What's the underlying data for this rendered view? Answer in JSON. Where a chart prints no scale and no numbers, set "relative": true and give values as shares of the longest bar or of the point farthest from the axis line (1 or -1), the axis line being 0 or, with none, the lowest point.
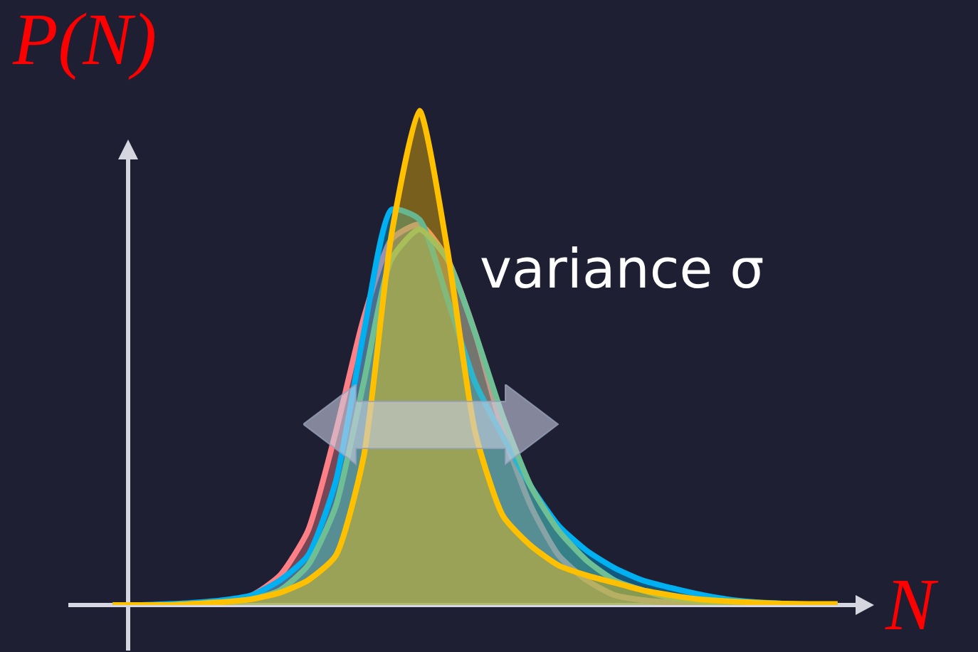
{
  "chart_data": {
    "type": "area",
    "relative": true,
    "ylabel": "P(N)",
    "xlabel": "N",
    "annotations": [
      "variance σ"
    ],
    "legend": false,
    "grid": false,
    "marker": "none",
    "categories": [
      null,
      null,
      null,
      null,
      null,
      null,
      null,
      null,
      null,
      null,
      null,
      null,
      null,
      null,
      null,
      null,
      null,
      null,
      null,
      null,
      null,
      null,
      null,
      null,
      null,
      null,
      null
    ],
    "series": [
      {
        "color": "#ff7f86",
        "values": [
          0,
          0,
          0,
          0.003,
          0.008,
          0.02,
          0.06,
          0.15,
          0.35,
          0.58,
          0.74,
          0.77,
          0.7,
          0.55,
          0.35,
          0.2,
          0.1,
          0.05,
          0.02,
          0.01,
          0.005,
          0.002,
          0,
          0,
          0,
          0,
          0
        ]
      },
      {
        "color": "#00b0f0",
        "values": [
          0,
          0,
          0.002,
          0.005,
          0.01,
          0.02,
          0.05,
          0.1,
          0.25,
          0.55,
          0.8,
          0.78,
          0.62,
          0.45,
          0.34,
          0.24,
          0.16,
          0.11,
          0.075,
          0.05,
          0.035,
          0.022,
          0.012,
          0.006,
          0.003,
          0.001,
          0
        ]
      },
      {
        "color": "#6fbf95",
        "values": [
          0,
          0,
          0,
          0.002,
          0.006,
          0.012,
          0.03,
          0.08,
          0.2,
          0.45,
          0.7,
          0.76,
          0.7,
          0.55,
          0.38,
          0.24,
          0.15,
          0.09,
          0.05,
          0.03,
          0.015,
          0.008,
          0.004,
          0.002,
          0.001,
          0,
          0
        ]
      },
      {
        "color": "#ffc000",
        "values": [
          0,
          0,
          0,
          0.003,
          0.006,
          0.012,
          0.025,
          0.05,
          0.1,
          0.3,
          0.75,
          1,
          0.72,
          0.35,
          0.18,
          0.12,
          0.08,
          0.06,
          0.045,
          0.03,
          0.02,
          0.012,
          0.008,
          0.005,
          0.003,
          0.002,
          0.002
        ]
      }
    ]
  }
}
